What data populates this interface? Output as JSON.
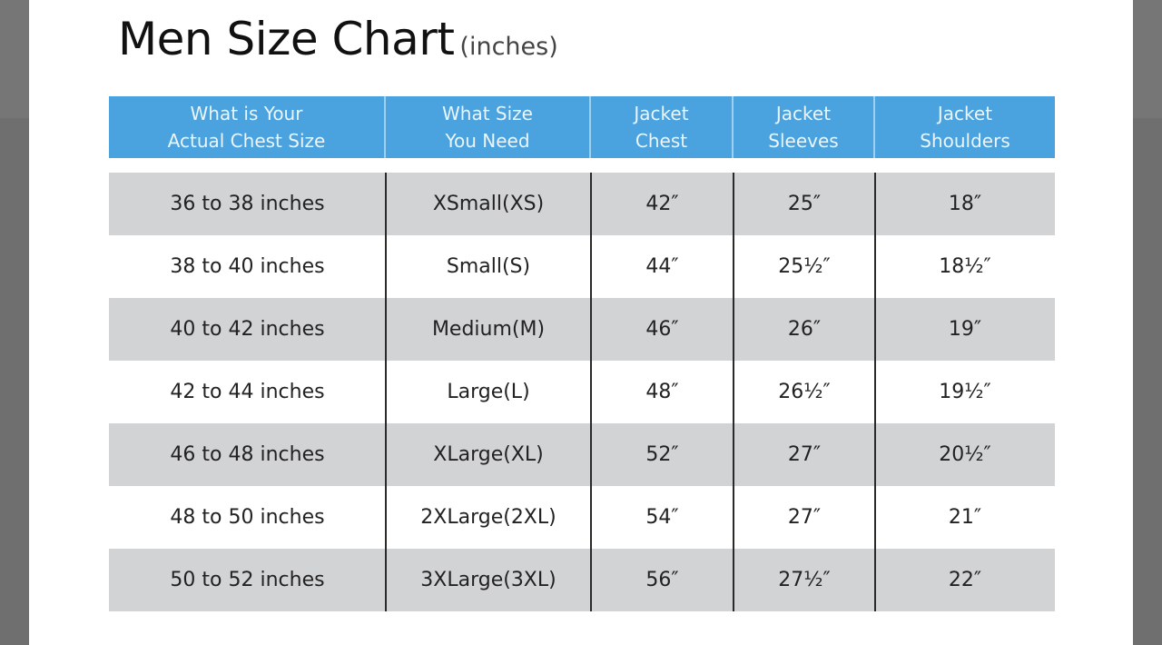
{
  "title": "Men Size Chart",
  "unit": "(inches)",
  "colors": {
    "header": "#4aa3df",
    "stripe": "#d2d3d5"
  },
  "headers": [
    "What is Your\nActual Chest Size",
    "What Size\nYou Need",
    "Jacket\nChest",
    "Jacket\nSleeves",
    "Jacket\nShoulders"
  ],
  "rows": [
    [
      "36 to 38 inches",
      "XSmall(XS)",
      "42″",
      "25″",
      "18″"
    ],
    [
      "38 to 40 inches",
      "Small(S)",
      "44″",
      "25½″",
      "18½″"
    ],
    [
      "40 to 42 inches",
      "Medium(M)",
      "46″",
      "26″",
      "19″"
    ],
    [
      "42 to 44 inches",
      "Large(L)",
      "48″",
      "26½″",
      "19½″"
    ],
    [
      "46 to 48 inches",
      "XLarge(XL)",
      "52″",
      "27″",
      "20½″"
    ],
    [
      "48 to 50 inches",
      "2XLarge(2XL)",
      "54″",
      "27″",
      "21″"
    ],
    [
      "50 to 52 inches",
      "3XLarge(3XL)",
      "56″",
      "27½″",
      "22″"
    ]
  ]
}
